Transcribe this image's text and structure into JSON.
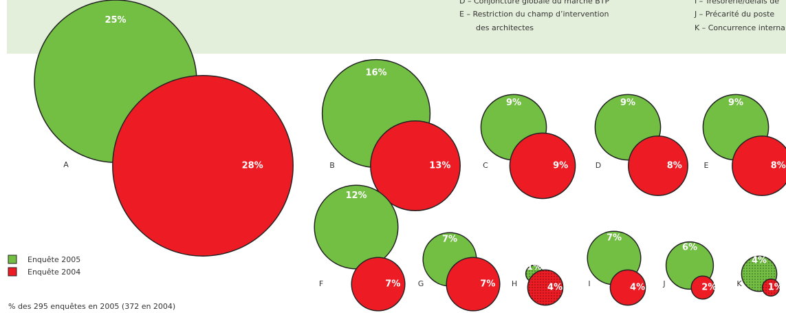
{
  "chart_data": {
    "type": "bubble",
    "legend_texts": [
      "D – Conjoncture globale du marché BTP",
      "E – Restriction du champ d’intervention",
      "des architectes",
      "I – Trésorerie/délais de",
      "J – Précarité du poste",
      "K – Concurrence interna"
    ],
    "categories": [
      "A",
      "B",
      "C",
      "D",
      "E",
      "F",
      "G",
      "H",
      "I",
      "J",
      "K"
    ],
    "series": [
      {
        "name": "Enquête 2005",
        "color": "#72bf44",
        "values": [
          25,
          16,
          9,
          9,
          9,
          12,
          7,
          1,
          7,
          6,
          4
        ],
        "value_labels": [
          "25%",
          "16%",
          "9%",
          "9%",
          "9%",
          "12%",
          "7%",
          "1%",
          "7%",
          "6%",
          "4%"
        ]
      },
      {
        "name": "Enquête 2004",
        "color": "#ed1c24",
        "values": [
          28,
          13,
          9,
          8,
          8,
          7,
          7,
          4,
          4,
          2,
          1
        ],
        "value_labels": [
          "28%",
          "13%",
          "9%",
          "8%",
          "8%",
          "7%",
          "7%",
          "4%",
          "4%",
          "2%",
          "1%"
        ]
      }
    ],
    "dotted": [
      false,
      false,
      false,
      false,
      false,
      false,
      false,
      true,
      false,
      false,
      true
    ],
    "note": "% des 295 enquêtes en 2005 (372 en 2004)"
  }
}
